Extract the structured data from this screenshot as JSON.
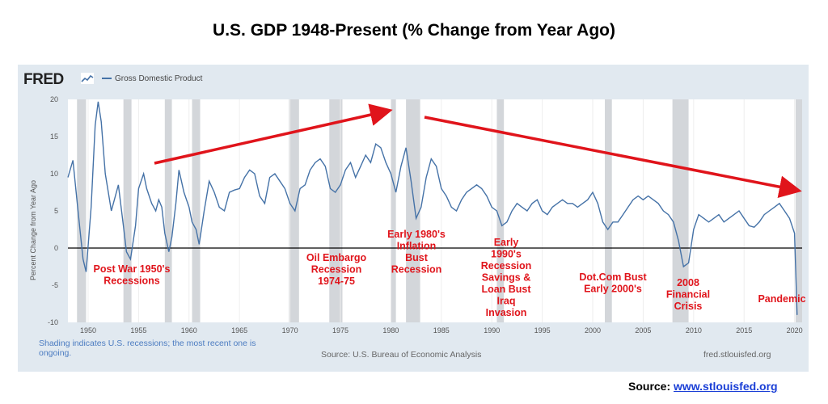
{
  "page_title": "U.S. GDP 1948-Present (% Change from Year Ago)",
  "fred": {
    "logo": "FRED",
    "legend_label": "Gross Domestic Product",
    "y_axis_label": "Percent Change from Year Ago",
    "footnote": "Shading indicates U.S. recessions; the most recent one is ongoing.",
    "source": "Source: U.S. Bureau of Economic Analysis",
    "url": "fred.stlouisfed.org"
  },
  "source_footer": {
    "label": "Source:",
    "link": "www.stlouisfed.org"
  },
  "colors": {
    "series": "#4572a7",
    "annotation": "#e0141b",
    "recession_shade": "#d3d6da",
    "panel": "#e1e9f0"
  },
  "chart_data": {
    "type": "line",
    "title": "U.S. GDP 1948-Present (% Change from Year Ago)",
    "ylabel": "Percent Change from Year Ago",
    "xlim": [
      1948,
      2020.75
    ],
    "ylim": [
      -10,
      20
    ],
    "x_ticks": [
      1950,
      1955,
      1960,
      1965,
      1970,
      1975,
      1980,
      1985,
      1990,
      1995,
      2000,
      2005,
      2010,
      2015,
      2020
    ],
    "y_ticks": [
      -10,
      -5,
      0,
      5,
      10,
      15,
      20
    ],
    "grid": "vertical",
    "series": [
      {
        "name": "Gross Domestic Product",
        "x": [
          1948.0,
          1948.5,
          1949.0,
          1949.5,
          1949.8,
          1950.3,
          1950.7,
          1951.0,
          1951.3,
          1951.7,
          1952.3,
          1952.7,
          1953.0,
          1953.5,
          1953.8,
          1954.2,
          1954.7,
          1955.0,
          1955.5,
          1955.8,
          1956.3,
          1956.7,
          1957.0,
          1957.3,
          1957.6,
          1958.0,
          1958.3,
          1958.7,
          1959.0,
          1959.5,
          1960.0,
          1960.3,
          1960.7,
          1961.0,
          1961.5,
          1962.0,
          1962.5,
          1963.0,
          1963.5,
          1964.0,
          1964.5,
          1965.0,
          1965.5,
          1966.0,
          1966.5,
          1967.0,
          1967.5,
          1968.0,
          1968.5,
          1969.0,
          1969.5,
          1970.0,
          1970.5,
          1971.0,
          1971.5,
          1972.0,
          1972.5,
          1973.0,
          1973.5,
          1974.0,
          1974.5,
          1975.0,
          1975.5,
          1976.0,
          1976.5,
          1977.0,
          1977.5,
          1978.0,
          1978.5,
          1979.0,
          1979.5,
          1980.0,
          1980.5,
          1981.0,
          1981.5,
          1982.0,
          1982.5,
          1983.0,
          1983.5,
          1984.0,
          1984.5,
          1985.0,
          1985.5,
          1986.0,
          1986.5,
          1987.0,
          1987.5,
          1988.0,
          1988.5,
          1989.0,
          1989.5,
          1990.0,
          1990.5,
          1991.0,
          1991.5,
          1992.0,
          1992.5,
          1993.0,
          1993.5,
          1994.0,
          1994.5,
          1995.0,
          1995.5,
          1996.0,
          1996.5,
          1997.0,
          1997.5,
          1998.0,
          1998.5,
          1999.0,
          1999.5,
          2000.0,
          2000.5,
          2001.0,
          2001.5,
          2002.0,
          2002.5,
          2003.0,
          2003.5,
          2004.0,
          2004.5,
          2005.0,
          2005.5,
          2006.0,
          2006.5,
          2007.0,
          2007.5,
          2008.0,
          2008.5,
          2009.0,
          2009.5,
          2010.0,
          2010.5,
          2011.0,
          2011.5,
          2012.0,
          2012.5,
          2013.0,
          2013.5,
          2014.0,
          2014.5,
          2015.0,
          2015.5,
          2016.0,
          2016.5,
          2017.0,
          2017.5,
          2018.0,
          2018.5,
          2019.0,
          2019.5,
          2020.0,
          2020.25
        ],
        "values": [
          9.5,
          11.8,
          5.0,
          -1.5,
          -3.2,
          5.5,
          16.5,
          19.7,
          17.0,
          10.0,
          5.0,
          7.0,
          8.5,
          3.0,
          -0.5,
          -1.5,
          3.0,
          8.0,
          10.0,
          8.0,
          6.0,
          5.0,
          6.5,
          5.5,
          2.0,
          -0.5,
          1.5,
          6.0,
          10.5,
          7.5,
          5.5,
          3.5,
          2.5,
          0.5,
          5.0,
          9.0,
          7.5,
          5.5,
          5.0,
          7.5,
          7.8,
          8.0,
          9.5,
          10.5,
          10.0,
          7.0,
          6.0,
          9.5,
          10.0,
          9.0,
          8.0,
          6.0,
          5.0,
          8.0,
          8.5,
          10.5,
          11.5,
          12.0,
          11.0,
          8.0,
          7.5,
          8.5,
          10.5,
          11.5,
          9.5,
          11.0,
          12.5,
          11.5,
          14.0,
          13.5,
          11.5,
          10.0,
          7.5,
          11.0,
          13.5,
          9.0,
          4.0,
          5.5,
          9.5,
          12.0,
          11.0,
          8.0,
          7.0,
          5.5,
          5.0,
          6.5,
          7.5,
          8.0,
          8.5,
          8.0,
          7.0,
          5.5,
          5.0,
          3.0,
          3.5,
          5.0,
          6.0,
          5.5,
          5.0,
          6.0,
          6.5,
          5.0,
          4.5,
          5.5,
          6.0,
          6.5,
          6.0,
          6.0,
          5.5,
          6.0,
          6.5,
          7.5,
          6.0,
          3.5,
          2.5,
          3.5,
          3.5,
          4.5,
          5.5,
          6.5,
          7.0,
          6.5,
          7.0,
          6.5,
          6.0,
          5.0,
          4.5,
          3.5,
          1.0,
          -2.5,
          -2.0,
          2.5,
          4.5,
          4.0,
          3.5,
          4.0,
          4.5,
          3.5,
          4.0,
          4.5,
          5.0,
          4.0,
          3.0,
          2.8,
          3.5,
          4.5,
          5.0,
          5.5,
          6.0,
          5.0,
          4.0,
          2.0,
          -9.0
        ]
      }
    ],
    "recessions": [
      [
        1948.9,
        1949.8
      ],
      [
        1953.5,
        1954.3
      ],
      [
        1957.6,
        1958.3
      ],
      [
        1960.3,
        1961.1
      ],
      [
        1969.9,
        1970.9
      ],
      [
        1973.9,
        1975.2
      ],
      [
        1980.0,
        1980.5
      ],
      [
        1981.5,
        1982.9
      ],
      [
        1990.5,
        1991.2
      ],
      [
        2001.2,
        2001.9
      ],
      [
        2007.9,
        2009.5
      ],
      [
        2020.1,
        2020.75
      ]
    ],
    "annotations": [
      {
        "lines": [
          "Post War 1950's",
          "Recessions"
        ]
      },
      {
        "lines": [
          "Oil Embargo",
          "Recession",
          "1974-75"
        ]
      },
      {
        "lines": [
          "Early 1980's",
          "Inflation",
          "Bust",
          "Recession"
        ]
      },
      {
        "lines": [
          "Early",
          "1990's",
          "Recession",
          "Savings &",
          "Loan Bust",
          "Iraq",
          "Invasion"
        ]
      },
      {
        "lines": [
          "Dot.Com Bust",
          "Early 2000's"
        ]
      },
      {
        "lines": [
          "2008",
          "Financial",
          "Crisis"
        ]
      },
      {
        "lines": [
          "Pandemic"
        ]
      }
    ]
  }
}
